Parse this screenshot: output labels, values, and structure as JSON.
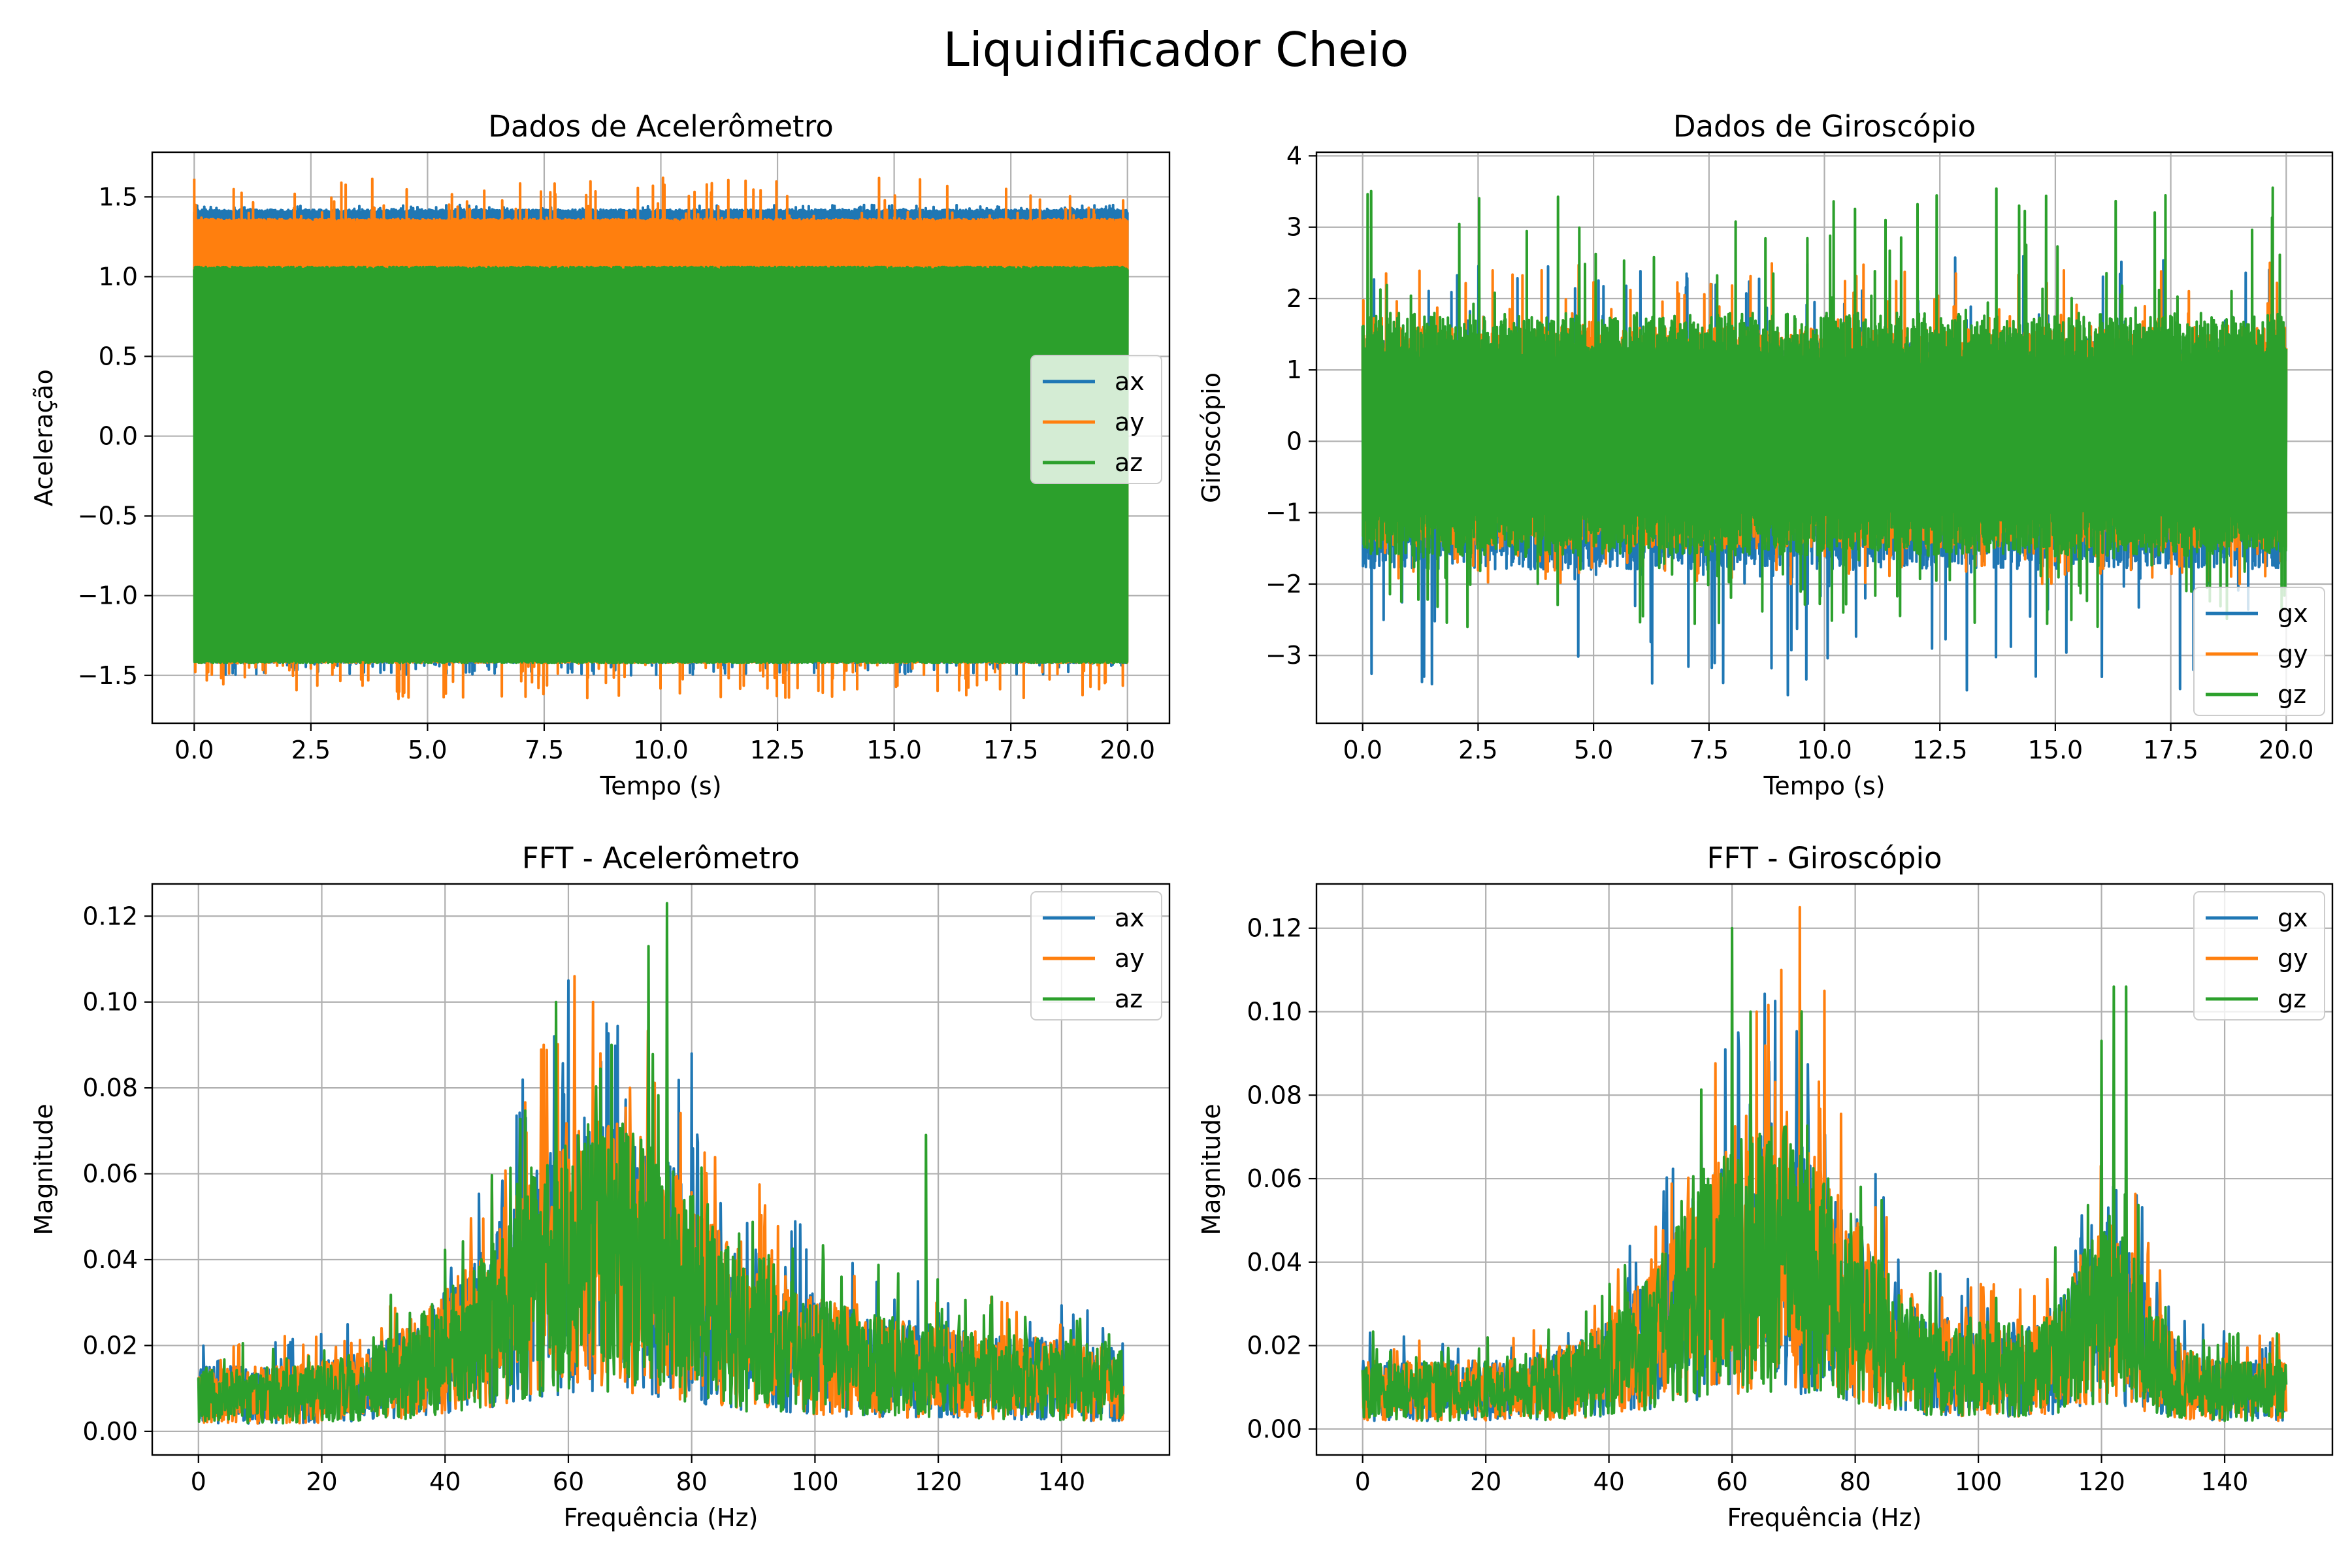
{
  "figure": {
    "title": "Liquidificador Cheio"
  },
  "colors": {
    "c0": "#1f77b4",
    "c1": "#ff7f0e",
    "c2": "#2ca02c",
    "grid": "#b0b0b0"
  },
  "chart_data": [
    {
      "type": "line",
      "kind": "time",
      "title": "Dados de Acelerômetro",
      "xlabel": "Tempo (s)",
      "ylabel": "Aceleração",
      "xlim": [
        -0.9,
        20.9
      ],
      "ylim": [
        -1.8,
        1.78
      ],
      "xticks": [
        0,
        2.5,
        5,
        7.5,
        10,
        12.5,
        15,
        17.5,
        20
      ],
      "xtick_labels": [
        "0.0",
        "2.5",
        "5.0",
        "7.5",
        "10.0",
        "12.5",
        "15.0",
        "17.5",
        "20.0"
      ],
      "yticks": [
        -1.5,
        -1.0,
        -0.5,
        0.0,
        0.5,
        1.0,
        1.5
      ],
      "ytick_labels": [
        "−1.5",
        "−1.0",
        "−0.5",
        "0.0",
        "0.5",
        "1.0",
        "1.5"
      ],
      "grid": true,
      "legend": "center-right",
      "x_range": [
        0,
        20
      ],
      "series": [
        {
          "name": "ax",
          "color": "#1f77b4",
          "band": [
            -1.42,
            1.42
          ],
          "peak_high": 1.45,
          "peak_low": -1.5
        },
        {
          "name": "ay",
          "color": "#ff7f0e",
          "band": [
            -1.42,
            1.36
          ],
          "peak_high": 1.62,
          "peak_low": -1.65
        },
        {
          "name": "az",
          "color": "#2ca02c",
          "band": [
            -1.42,
            1.06
          ],
          "peak_high": 1.06,
          "peak_low": -1.42
        }
      ]
    },
    {
      "type": "line",
      "kind": "time",
      "title": "Dados de Giroscópio",
      "xlabel": "Tempo (s)",
      "ylabel": "Giroscópio",
      "xlim": [
        -1.0,
        21.0
      ],
      "ylim": [
        -3.95,
        4.05
      ],
      "xticks": [
        0,
        2.5,
        5,
        7.5,
        10,
        12.5,
        15,
        17.5,
        20
      ],
      "xtick_labels": [
        "0.0",
        "2.5",
        "5.0",
        "7.5",
        "10.0",
        "12.5",
        "15.0",
        "17.5",
        "20.0"
      ],
      "yticks": [
        -3,
        -2,
        -1,
        0,
        1,
        2,
        3,
        4
      ],
      "ytick_labels": [
        "−3",
        "−2",
        "−1",
        "0",
        "1",
        "2",
        "3",
        "4"
      ],
      "grid": true,
      "legend": "lower-right",
      "x_range": [
        0,
        20
      ],
      "series": [
        {
          "name": "gx",
          "color": "#1f77b4",
          "band": [
            -1.8,
            1.4
          ],
          "peak_high": 2.6,
          "peak_low": -3.6
        },
        {
          "name": "gy",
          "color": "#ff7f0e",
          "band": [
            -1.5,
            1.6
          ],
          "peak_high": 2.5,
          "peak_low": -2.0
        },
        {
          "name": "gz",
          "color": "#2ca02c",
          "band": [
            -1.6,
            1.8
          ],
          "peak_high": 3.7,
          "peak_low": -2.6
        }
      ]
    },
    {
      "type": "line",
      "kind": "fft",
      "title": "FFT - Acelerômetro",
      "xlabel": "Frequência (Hz)",
      "ylabel": "Magnitude",
      "xlim": [
        -7.5,
        157.5
      ],
      "ylim": [
        -0.0055,
        0.1275
      ],
      "xticks": [
        0,
        20,
        40,
        60,
        80,
        100,
        120,
        140
      ],
      "xtick_labels": [
        "0",
        "20",
        "40",
        "60",
        "80",
        "100",
        "120",
        "140"
      ],
      "yticks": [
        0,
        0.02,
        0.04,
        0.06,
        0.08,
        0.1,
        0.12
      ],
      "ytick_labels": [
        "0.00",
        "0.02",
        "0.04",
        "0.06",
        "0.08",
        "0.10",
        "0.12"
      ],
      "grid": true,
      "legend": "upper-right",
      "x_range": [
        0,
        150
      ],
      "series": [
        {
          "name": "ax",
          "color": "#1f77b4",
          "peaks": [
            [
              60,
              0.105
            ],
            [
              80,
              0.088
            ],
            [
              76,
              0.07
            ],
            [
              57,
              0.06
            ]
          ]
        },
        {
          "name": "ay",
          "color": "#ff7f0e",
          "peaks": [
            [
              61,
              0.106
            ],
            [
              64,
              0.1
            ],
            [
              56,
              0.09
            ],
            [
              70,
              0.08
            ]
          ]
        },
        {
          "name": "az",
          "color": "#2ca02c",
          "peaks": [
            [
              76,
              0.123
            ],
            [
              73,
              0.113
            ],
            [
              58,
              0.1
            ],
            [
              67,
              0.09
            ],
            [
              118,
              0.069
            ]
          ]
        }
      ]
    },
    {
      "type": "line",
      "kind": "fft",
      "title": "FFT - Giroscópio",
      "xlabel": "Frequência (Hz)",
      "ylabel": "Magnitude",
      "xlim": [
        -7.5,
        157.5
      ],
      "ylim": [
        -0.0062,
        0.1306
      ],
      "xticks": [
        0,
        20,
        40,
        60,
        80,
        100,
        120,
        140
      ],
      "xtick_labels": [
        "0",
        "20",
        "40",
        "60",
        "80",
        "100",
        "120",
        "140"
      ],
      "yticks": [
        0,
        0.02,
        0.04,
        0.06,
        0.08,
        0.1,
        0.12
      ],
      "ytick_labels": [
        "0.00",
        "0.02",
        "0.04",
        "0.06",
        "0.08",
        "0.10",
        "0.12"
      ],
      "grid": true,
      "legend": "upper-right",
      "x_range": [
        0,
        150
      ],
      "series": [
        {
          "name": "gx",
          "color": "#1f77b4",
          "peaks": [
            [
              61,
              0.095
            ],
            [
              66,
              0.088
            ],
            [
              55,
              0.072
            ]
          ]
        },
        {
          "name": "gy",
          "color": "#ff7f0e",
          "peaks": [
            [
              71,
              0.125
            ],
            [
              68,
              0.11
            ],
            [
              75,
              0.105
            ],
            [
              64,
              0.1
            ]
          ]
        },
        {
          "name": "gz",
          "color": "#2ca02c",
          "peaks": [
            [
              60,
              0.12
            ],
            [
              122,
              0.106
            ],
            [
              124,
              0.106
            ],
            [
              120,
              0.093
            ],
            [
              63,
              0.1
            ]
          ]
        }
      ]
    }
  ]
}
